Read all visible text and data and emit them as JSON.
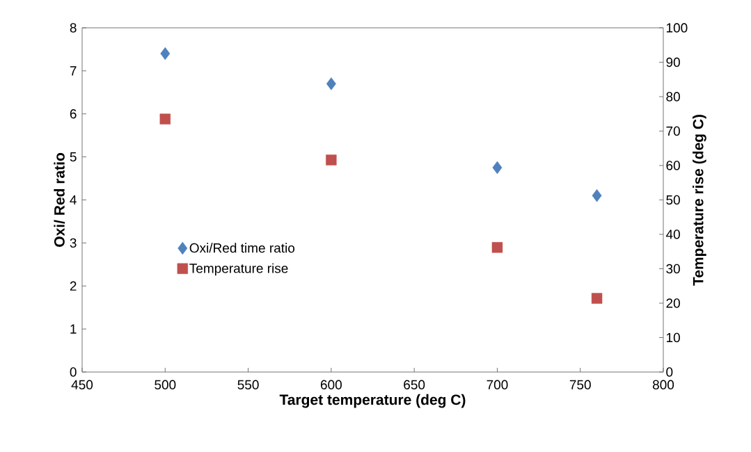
{
  "chart_data": {
    "type": "scatter",
    "xlabel": "Target temperature (deg C)",
    "ylabel": "Oxi/ Red ratio",
    "y2label": "Temperature rise (deg C)",
    "x": [
      500,
      600,
      700,
      760
    ],
    "series": [
      {
        "name": "Oxi/Red time ratio",
        "color": "#4f81bd",
        "marker": "diamond",
        "values": [
          7.4,
          6.7,
          4.75,
          4.1
        ]
      },
      {
        "name": "Temperature rise",
        "color": "#c0504d",
        "marker": "square",
        "axis": "y2",
        "values": [
          73.5,
          61.6,
          36.2,
          21.4
        ]
      }
    ],
    "xlim": [
      450,
      800
    ],
    "xticks": [
      450,
      500,
      550,
      600,
      650,
      700,
      750,
      800
    ],
    "ylim": [
      0,
      8
    ],
    "yticks": [
      0,
      1,
      2,
      3,
      4,
      5,
      6,
      7,
      8
    ],
    "y2lim": [
      0,
      100
    ],
    "y2ticks": [
      0,
      10,
      20,
      30,
      40,
      50,
      60,
      70,
      80,
      90,
      100
    ],
    "legend": "left",
    "grid": false
  }
}
